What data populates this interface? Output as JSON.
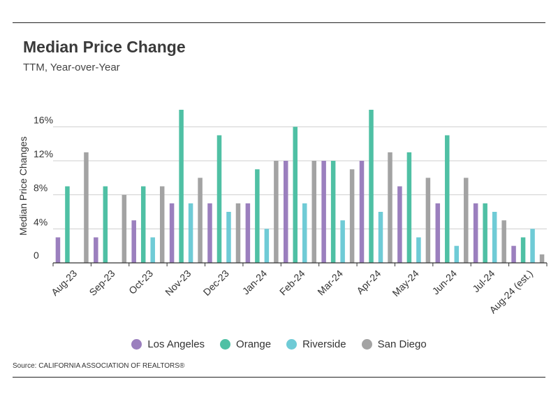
{
  "header": {
    "title": "Median Price Change",
    "subtitle": "TTM, Year-over-Year"
  },
  "footer": {
    "source": "Source:  CALIFORNIA ASSOCIATION OF REALTORS®"
  },
  "chart_data": {
    "type": "bar",
    "title": "Median Price Change",
    "subtitle": "TTM, Year-over-Year",
    "xlabel": "",
    "ylabel": "Median Price Changes",
    "ylim": [
      0,
      18
    ],
    "yticks": [
      0,
      4,
      8,
      12,
      16
    ],
    "ytick_labels": [
      "0",
      "4%",
      "8%",
      "12%",
      "16%"
    ],
    "grid": true,
    "legend_position": "bottom",
    "categories": [
      "Aug-23",
      "Sep-23",
      "Oct-23",
      "Nov-23",
      "Dec-23",
      "Jan-24",
      "Feb-24",
      "Mar-24",
      "Apr-24",
      "May-24",
      "Jun-24",
      "Jul-24",
      "Aug-24 (est.)"
    ],
    "series": [
      {
        "name": "Los Angeles",
        "color": "#9b7fbe",
        "values": [
          3,
          3,
          5,
          7,
          7,
          7,
          12,
          12,
          12,
          9,
          7,
          7,
          2
        ]
      },
      {
        "name": "Orange",
        "color": "#4fc0a4",
        "values": [
          9,
          9,
          9,
          18,
          15,
          11,
          16,
          12,
          18,
          13,
          15,
          7,
          3
        ]
      },
      {
        "name": "Riverside",
        "color": "#6fcbd6",
        "values": [
          0,
          0,
          3,
          7,
          6,
          4,
          7,
          5,
          6,
          3,
          2,
          6,
          4
        ]
      },
      {
        "name": "San Diego",
        "color": "#a3a3a3",
        "values": [
          13,
          8,
          9,
          10,
          7,
          12,
          12,
          11,
          13,
          10,
          10,
          5,
          1
        ]
      }
    ]
  }
}
